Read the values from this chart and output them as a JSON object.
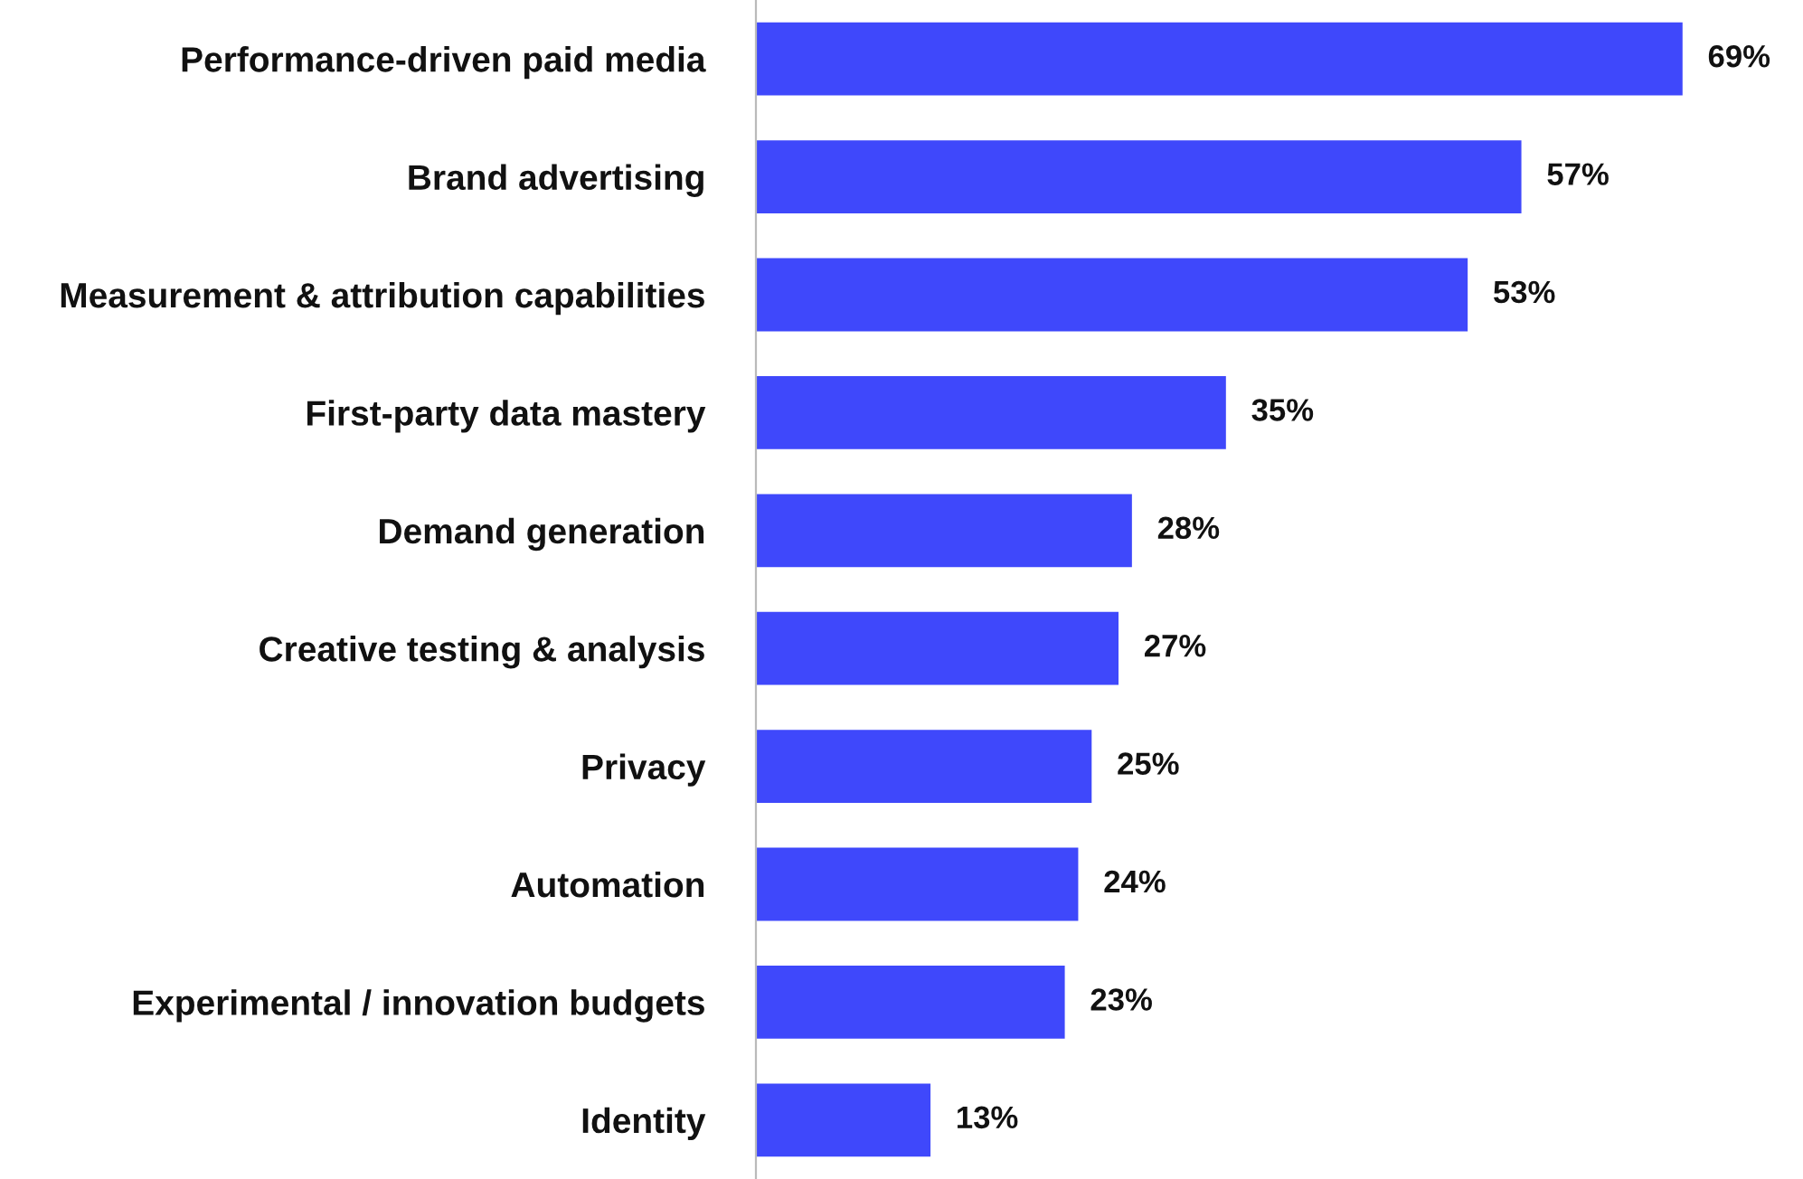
{
  "chart_data": {
    "type": "bar",
    "orientation": "horizontal",
    "categories": [
      "Performance-driven paid media",
      "Brand advertising",
      "Measurement & attribution capabilities",
      "First-party data mastery",
      "Demand generation",
      "Creative testing & analysis",
      "Privacy",
      "Automation",
      "Experimental / innovation budgets",
      "Identity"
    ],
    "values": [
      69,
      57,
      53,
      35,
      28,
      27,
      25,
      24,
      23,
      13
    ],
    "value_labels": [
      "69%",
      "57%",
      "53%",
      "35%",
      "28%",
      "27%",
      "25%",
      "24%",
      "23%",
      "13%"
    ],
    "color": "#3f48fb",
    "grid": false,
    "legend": false
  }
}
